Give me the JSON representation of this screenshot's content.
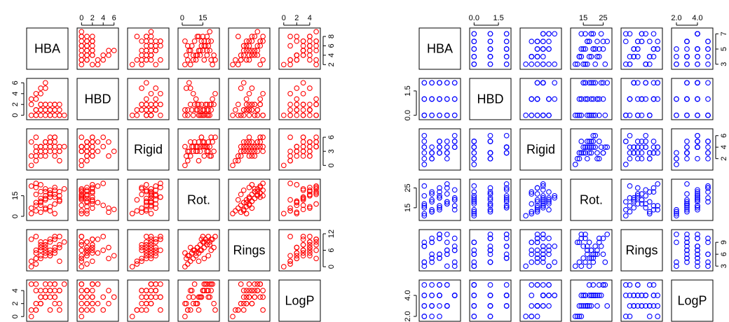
{
  "chart_data": [
    {
      "type": "scatter",
      "variables": [
        "HBA",
        "HBD",
        "Rigid",
        "Rot.",
        "Rings",
        "LogP"
      ],
      "point_color": "#ff0000",
      "ticks": {
        "HBA": [
          2,
          4,
          6,
          8
        ],
        "HBD": [
          0,
          2,
          4,
          6
        ],
        "Rigid": [
          0,
          3,
          6
        ],
        "Rot.": [
          0,
          15
        ],
        "Rings": [
          0,
          6,
          12
        ],
        "LogP": [
          0,
          2,
          4
        ]
      },
      "tick_labels": {
        "HBA": [
          "2",
          "4",
          "6",
          "8"
        ],
        "HBD": [
          "0",
          "2",
          "4",
          "6"
        ],
        "Rigid": [
          "0",
          "3",
          "6"
        ],
        "Rot.": [
          "0",
          "15"
        ],
        "Rings": [
          "0",
          "6",
          "12"
        ],
        "LogP": [
          "0",
          "2",
          "4"
        ]
      },
      "ranges": {
        "HBA": [
          1.6,
          9.2
        ],
        "HBD": [
          -0.3,
          6.3
        ],
        "Rigid": [
          -0.4,
          7.2
        ],
        "Rot.": [
          -1,
          25
        ],
        "Rings": [
          -0.5,
          12.5
        ],
        "LogP": [
          -0.3,
          5.2
        ]
      },
      "records": [
        [
          2,
          0,
          0,
          2,
          0,
          0
        ],
        [
          3,
          1,
          1,
          4,
          1,
          1
        ],
        [
          2,
          2,
          2,
          6,
          2,
          1
        ],
        [
          3,
          0,
          3,
          8,
          3,
          2
        ],
        [
          4,
          1,
          4,
          10,
          4,
          2
        ],
        [
          5,
          2,
          5,
          12,
          5,
          3
        ],
        [
          6,
          0,
          6,
          14,
          6,
          3
        ],
        [
          7,
          1,
          2,
          16,
          7,
          4
        ],
        [
          8,
          2,
          3,
          18,
          8,
          4
        ],
        [
          9,
          0,
          4,
          20,
          9,
          5
        ],
        [
          2,
          3,
          5,
          22,
          10,
          5
        ],
        [
          3,
          4,
          6,
          24,
          11,
          1
        ],
        [
          4,
          5,
          2,
          3,
          3,
          2
        ],
        [
          5,
          6,
          3,
          5,
          4,
          3
        ],
        [
          6,
          1,
          4,
          7,
          5,
          4
        ],
        [
          7,
          2,
          5,
          9,
          6,
          5
        ],
        [
          8,
          1,
          3,
          11,
          7,
          2
        ],
        [
          4,
          0,
          4,
          13,
          8,
          3
        ],
        [
          5,
          1,
          5,
          15,
          9,
          4
        ],
        [
          6,
          2,
          4,
          17,
          10,
          5
        ],
        [
          7,
          0,
          3,
          19,
          11,
          3
        ],
        [
          3,
          1,
          2,
          21,
          6,
          4
        ],
        [
          4,
          2,
          3,
          23,
          7,
          2
        ],
        [
          5,
          0,
          4,
          18,
          8,
          5
        ],
        [
          6,
          1,
          5,
          16,
          9,
          4
        ],
        [
          7,
          2,
          6,
          14,
          10,
          3
        ],
        [
          8,
          0,
          1,
          12,
          2,
          1
        ],
        [
          3,
          3,
          3,
          10,
          5,
          2
        ],
        [
          4,
          4,
          4,
          8,
          6,
          3
        ],
        [
          5,
          5,
          5,
          6,
          7,
          4
        ],
        [
          6,
          0,
          3,
          4,
          4,
          1
        ],
        [
          7,
          1,
          4,
          2,
          5,
          2
        ],
        [
          5,
          2,
          2,
          20,
          8,
          3
        ],
        [
          4,
          1,
          3,
          18,
          9,
          4
        ],
        [
          3,
          0,
          4,
          16,
          3,
          5
        ],
        [
          6,
          1,
          5,
          19,
          4,
          4
        ],
        [
          7,
          2,
          6,
          21,
          10,
          5
        ],
        [
          8,
          0,
          4,
          15,
          11,
          4
        ],
        [
          5,
          1,
          3,
          13,
          6,
          3
        ],
        [
          4,
          2,
          4,
          11,
          7,
          2
        ]
      ]
    },
    {
      "type": "scatter",
      "variables": [
        "HBA",
        "HBD",
        "Rigid",
        "Rot.",
        "Rings",
        "LogP"
      ],
      "point_color": "#0000ff",
      "ticks": {
        "HBA": [
          3,
          5,
          7
        ],
        "HBD": [
          0.0,
          1.5
        ],
        "Rigid": [
          2,
          4,
          6
        ],
        "Rot.": [
          15,
          25
        ],
        "Rings": [
          3,
          6,
          9
        ],
        "LogP": [
          2.0,
          4.0
        ]
      },
      "tick_labels": {
        "HBA": [
          "3",
          "5",
          "7"
        ],
        "HBD": [
          "0.0",
          "1.5"
        ],
        "Rigid": [
          "2",
          "4",
          "6"
        ],
        "Rot.": [
          "15",
          "25"
        ],
        "Rings": [
          "3",
          "6",
          "9"
        ],
        "LogP": [
          "2.0",
          "4.0"
        ]
      },
      "ranges": {
        "HBA": [
          2.7,
          7.4
        ],
        "HBD": [
          -0.1,
          2.1
        ],
        "Rigid": [
          0.5,
          6.7
        ],
        "Rot.": [
          10,
          28
        ],
        "Rings": [
          2.5,
          11.5
        ],
        "LogP": [
          1.8,
          5.2
        ]
      },
      "records": [
        [
          3,
          0,
          1,
          11,
          3,
          2
        ],
        [
          4,
          1,
          2,
          13,
          4,
          2
        ],
        [
          5,
          2,
          3,
          15,
          5,
          3
        ],
        [
          6,
          0,
          4,
          17,
          6,
          3
        ],
        [
          7,
          1,
          5,
          19,
          7,
          4
        ],
        [
          3,
          2,
          6,
          21,
          8,
          4
        ],
        [
          4,
          0,
          2,
          23,
          9,
          5
        ],
        [
          5,
          1,
          3,
          25,
          10,
          5
        ],
        [
          6,
          2,
          4,
          27,
          11,
          3
        ],
        [
          7,
          0,
          5,
          14,
          3,
          4
        ],
        [
          3,
          1,
          3,
          16,
          4,
          3
        ],
        [
          4,
          2,
          4,
          18,
          5,
          4
        ],
        [
          5,
          0,
          5,
          20,
          6,
          5
        ],
        [
          6,
          1,
          3,
          22,
          7,
          3
        ],
        [
          7,
          2,
          4,
          24,
          8,
          4
        ],
        [
          3,
          0,
          2,
          12,
          9,
          2
        ],
        [
          4,
          1,
          3,
          14,
          10,
          3
        ],
        [
          5,
          2,
          4,
          16,
          11,
          4
        ],
        [
          6,
          0,
          5,
          18,
          3,
          5
        ],
        [
          7,
          1,
          6,
          20,
          4,
          4
        ],
        [
          4,
          2,
          3,
          19,
          5,
          3
        ],
        [
          5,
          0,
          4,
          21,
          6,
          4
        ],
        [
          6,
          1,
          2,
          17,
          7,
          3
        ],
        [
          3,
          2,
          4,
          15,
          8,
          4
        ],
        [
          4,
          0,
          3,
          13,
          9,
          3
        ],
        [
          5,
          1,
          5,
          23,
          10,
          4
        ],
        [
          6,
          2,
          3,
          25,
          6,
          5
        ],
        [
          7,
          0,
          4,
          19,
          7,
          4
        ],
        [
          3,
          1,
          5,
          17,
          8,
          3
        ],
        [
          5,
          2,
          4,
          20,
          5,
          4
        ],
        [
          4,
          1,
          2,
          22,
          6,
          4
        ],
        [
          6,
          0,
          3,
          18,
          9,
          3
        ],
        [
          7,
          2,
          4,
          16,
          10,
          4
        ],
        [
          5,
          1,
          3,
          14,
          11,
          2
        ],
        [
          3,
          0,
          4,
          26,
          4,
          5
        ]
      ]
    }
  ]
}
